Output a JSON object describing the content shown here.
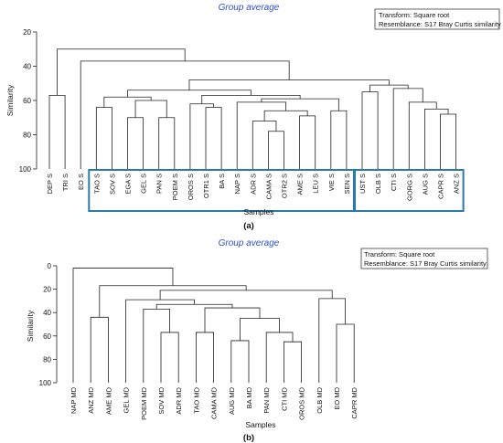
{
  "chart_data": [
    {
      "type": "dendrogram",
      "title": "Group average",
      "panel_label": "(a)",
      "legend": [
        "Transform: Square root",
        "Resemblance: S17 Bray Curtis similarity"
      ],
      "xlabel": "Samples",
      "ylabel": "Similarity",
      "ylim": [
        20,
        100
      ],
      "yticks": [
        20,
        40,
        60,
        80,
        100
      ],
      "leaves": [
        "DEP S",
        "TRI S",
        "EO S",
        "TAO S",
        "SOV S",
        "EGA S",
        "GEL S",
        "PAN S",
        "POEM S",
        "OROS S",
        "OTR1 S",
        "BA S",
        "NAP S",
        "ADR S",
        "CAMA S",
        "OTR2 S",
        "AME S",
        "LEU S",
        "VIE S",
        "SEN S",
        "UST S",
        "OLB S",
        "CTI S",
        "GORG S",
        "AUG S",
        "CAPR S",
        "ANZ S"
      ],
      "boxes": [
        [
          3,
          19
        ],
        [
          20,
          26
        ]
      ],
      "merges": [
        {
          "left": "DEP S",
          "right": "TRI S",
          "similarity": 57
        },
        {
          "left": "EGA S",
          "right": "GEL S",
          "similarity": 70
        },
        {
          "left": "PAN S",
          "right": "POEM S",
          "similarity": 70
        },
        {
          "left": "OTR1 S",
          "right": "BA S",
          "similarity": 64
        },
        {
          "left": "ADR S",
          "right": "CAMA S+OTR2 S",
          "similarity": 72
        },
        {
          "left": "CAMA S",
          "right": "OTR2 S",
          "similarity": 78
        },
        {
          "left": "AME S",
          "right": "LEU S",
          "similarity": 69
        },
        {
          "left": "VIE S",
          "right": "SEN S",
          "similarity": 66
        },
        {
          "left": "TAO S",
          "right": "SOV S",
          "similarity": 64
        },
        {
          "left": "EGA S+GEL S",
          "right": "PAN S+POEM S",
          "similarity": 60
        },
        {
          "left": "OROS S",
          "right": "OTR1 S+BA S",
          "similarity": 62
        },
        {
          "left": "ADR S..OTR2 S",
          "right": "AME S+LEU S",
          "similarity": 66
        },
        {
          "left": "NAP S",
          "right": "ADR S..LEU S",
          "similarity": 61
        },
        {
          "left": "NAP S..LEU S",
          "right": "VIE S+SEN S",
          "similarity": 59
        },
        {
          "left": "OROS S..BA S",
          "right": "NAP S..SEN S",
          "similarity": 57
        },
        {
          "left": "TAO S+SOV S",
          "right": "EGA S..POEM S",
          "similarity": 58
        },
        {
          "left": "TAO S..POEM S",
          "right": "OROS S..SEN S",
          "similarity": 54
        },
        {
          "left": "AUG S",
          "right": "CAPR S+ANZ S",
          "similarity": 65
        },
        {
          "left": "CAPR S",
          "right": "ANZ S",
          "similarity": 68
        },
        {
          "left": "GORG S",
          "right": "AUG S..ANZ S",
          "similarity": 61
        },
        {
          "left": "CTI S",
          "right": "GORG S..ANZ S",
          "similarity": 53
        },
        {
          "left": "UST S",
          "right": "OLB S",
          "similarity": 55
        },
        {
          "left": "UST S+OLB S",
          "right": "CTI S..ANZ S",
          "similarity": 51
        },
        {
          "left": "TAO S..SEN S",
          "right": "UST S..ANZ S",
          "similarity": 48
        },
        {
          "left": "EO S",
          "right": "TAO S..ANZ S",
          "similarity": 37
        },
        {
          "left": "DEP S+TRI S",
          "right": "EO S..ANZ S",
          "similarity": 30
        }
      ]
    },
    {
      "type": "dendrogram",
      "title": "Group average",
      "panel_label": "(b)",
      "legend": [
        "Transform: Square root",
        "Resemblance: S17 Bray Curtis similarity"
      ],
      "xlabel": "Samples",
      "ylabel": "Similarity",
      "ylim": [
        0,
        100
      ],
      "yticks": [
        0,
        20,
        40,
        60,
        80,
        100
      ],
      "leaves": [
        "NAP MD",
        "ANZ MD",
        "AME MD",
        "GEL MD",
        "POEM MD",
        "SOV MD",
        "ADR MD",
        "TAO MD",
        "CAMA MD",
        "AUG MD",
        "BA MD",
        "PAN MD",
        "CTI MD",
        "OROS MD",
        "OLB MD",
        "EO MD",
        "CAPR MD"
      ],
      "merges": [
        {
          "left": "ANZ MD",
          "right": "AME MD",
          "similarity": 44
        },
        {
          "left": "SOV MD",
          "right": "ADR MD",
          "similarity": 57
        },
        {
          "left": "POEM MD",
          "right": "SOV MD+ADR MD",
          "similarity": 37
        },
        {
          "left": "TAO MD",
          "right": "CAMA MD",
          "similarity": 57
        },
        {
          "left": "AUG MD",
          "right": "BA MD",
          "similarity": 64
        },
        {
          "left": "CTI MD",
          "right": "OROS MD",
          "similarity": 65
        },
        {
          "left": "PAN MD",
          "right": "CTI MD+OROS MD",
          "similarity": 57
        },
        {
          "left": "AUG MD+BA MD",
          "right": "PAN MD..OROS MD",
          "similarity": 45
        },
        {
          "left": "TAO MD+CAMA MD",
          "right": "AUG MD..OROS MD",
          "similarity": 36
        },
        {
          "left": "POEM MD..ADR MD",
          "right": "TAO MD..OROS MD",
          "similarity": 33
        },
        {
          "left": "GEL MD",
          "right": "POEM MD..OROS MD",
          "similarity": 29
        },
        {
          "left": "EO MD",
          "right": "CAPR MD",
          "similarity": 50
        },
        {
          "left": "OLB MD",
          "right": "EO MD+CAPR MD",
          "similarity": 28
        },
        {
          "left": "GEL MD..OROS MD",
          "right": "OLB MD..CAPR MD",
          "similarity": 21
        },
        {
          "left": "ANZ MD+AME MD",
          "right": "GEL MD..CAPR MD",
          "similarity": 17
        },
        {
          "left": "NAP MD",
          "right": "ANZ MD..CAPR MD",
          "similarity": 2
        }
      ]
    }
  ]
}
